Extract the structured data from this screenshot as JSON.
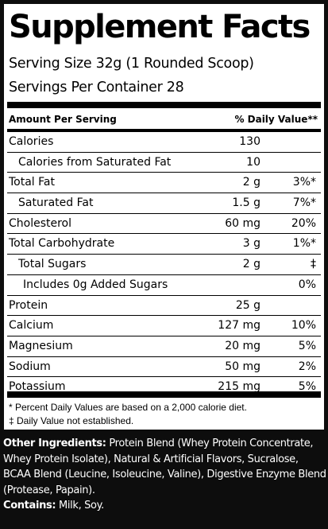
{
  "title": "Supplement Facts",
  "serving_size": "Serving Size 32g (1 Rounded Scoop)",
  "servings_per_container": "Servings Per Container  28",
  "header": {
    "amount_per_serving": "Amount Per Serving",
    "daily_value": "% Daily Value**"
  },
  "rows": [
    {
      "name": "Calories",
      "amount": "130",
      "dv": ""
    },
    {
      "name": "Calories from Saturated Fat",
      "amount": "10",
      "dv": ""
    },
    {
      "name": "Total Fat",
      "amount": "2 g",
      "dv": "3%*"
    },
    {
      "name": "Saturated Fat",
      "amount": "1.5 g",
      "dv": "7%*"
    },
    {
      "name": "Cholesterol",
      "amount": "60 mg",
      "dv": "20%"
    },
    {
      "name": "Total Carbohydrate",
      "amount": "3 g",
      "dv": "1%*"
    },
    {
      "name": "Total Sugars",
      "amount": "2 g",
      "dv": "‡"
    },
    {
      "name": "Includes 0g Added Sugars",
      "amount": "",
      "dv": "0%"
    },
    {
      "name": "Protein",
      "amount": "25 g",
      "dv": ""
    },
    {
      "name": "Calcium",
      "amount": "127 mg",
      "dv": "10%"
    },
    {
      "name": "Magnesium",
      "amount": "20 mg",
      "dv": "5%"
    },
    {
      "name": "Sodium",
      "amount": "50 mg",
      "dv": "2%"
    },
    {
      "name": "Potassium",
      "amount": "215 mg",
      "dv": "5%"
    }
  ],
  "footnotes": {
    "daily_values": "* Percent Daily Values are based on a 2,000 calorie diet.",
    "not_established": "‡ Daily Value not established."
  },
  "other_ingredients": {
    "label": "Other Ingredients:",
    "text": " Protein Blend (Whey Protein Concentrate, Whey Protein Isolate), Natural & Artificial Flavors, Sucralose, BCAA Blend (Leucine, Isoleucine, Valine), Digestive Enzyme Blend (Protease, Papain)."
  },
  "contains": {
    "label": "Contains:",
    "text": " Milk, Soy."
  }
}
